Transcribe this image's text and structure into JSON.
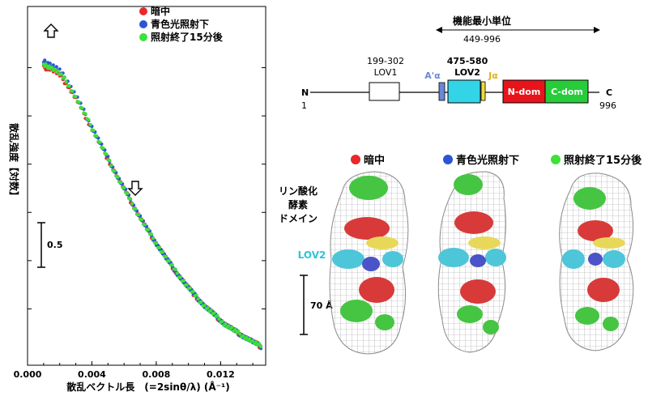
{
  "chart_data": {
    "type": "scatter",
    "xlabel": "散乱ベクトル長　(=2sinθ/λ) (Å⁻¹)",
    "ylabel": "散乱強度【対数】",
    "x_ticks": [
      "0.000",
      "0.004",
      "0.008",
      "0.012"
    ],
    "xlim": [
      0.0,
      0.0148
    ],
    "scale_bar_label": "0.5",
    "log_intensity_range": [
      0.0,
      3.55
    ],
    "legend_position": "top-right",
    "series": [
      {
        "name": "暗中",
        "color": "#e8282b",
        "x": [
          0.001,
          0.0014,
          0.002,
          0.0026,
          0.0032,
          0.0038,
          0.0044,
          0.005,
          0.0056,
          0.0062,
          0.0068,
          0.0074,
          0.008,
          0.0086,
          0.0092,
          0.0098,
          0.0104,
          0.011,
          0.0116,
          0.0122,
          0.0128,
          0.0134,
          0.014,
          0.0146
        ],
        "y": [
          3.0,
          2.99,
          2.92,
          2.79,
          2.62,
          2.43,
          2.24,
          2.05,
          1.86,
          1.68,
          1.5,
          1.33,
          1.18,
          1.03,
          0.89,
          0.76,
          0.64,
          0.53,
          0.44,
          0.35,
          0.28,
          0.22,
          0.16,
          0.1
        ]
      },
      {
        "name": "青色光照射下",
        "color": "#2c55d6",
        "x": [
          0.001,
          0.0014,
          0.002,
          0.0026,
          0.0032,
          0.0038,
          0.0044,
          0.005,
          0.0056,
          0.0062,
          0.0068,
          0.0074,
          0.008,
          0.0086,
          0.0092,
          0.0098,
          0.0104,
          0.011,
          0.0116,
          0.0122,
          0.0128,
          0.0134,
          0.014,
          0.0146
        ],
        "y": [
          3.06,
          3.04,
          2.97,
          2.83,
          2.65,
          2.45,
          2.26,
          2.06,
          1.87,
          1.69,
          1.51,
          1.34,
          1.18,
          1.03,
          0.89,
          0.76,
          0.64,
          0.53,
          0.44,
          0.35,
          0.28,
          0.22,
          0.16,
          0.1
        ]
      },
      {
        "name": "照射終了15分後",
        "color": "#3ee03a",
        "x": [
          0.001,
          0.0014,
          0.002,
          0.0026,
          0.0032,
          0.0038,
          0.0044,
          0.005,
          0.0056,
          0.0062,
          0.0068,
          0.0074,
          0.008,
          0.0086,
          0.0092,
          0.0098,
          0.0104,
          0.011,
          0.0116,
          0.0122,
          0.0128,
          0.0134,
          0.014,
          0.0146
        ],
        "y": [
          3.02,
          3.01,
          2.94,
          2.81,
          2.63,
          2.44,
          2.25,
          2.05,
          1.86,
          1.68,
          1.5,
          1.33,
          1.18,
          1.03,
          0.89,
          0.76,
          0.64,
          0.53,
          0.44,
          0.35,
          0.28,
          0.22,
          0.16,
          0.1
        ]
      }
    ]
  },
  "legend": {
    "dark": {
      "label": "暗中",
      "color": "#e8282b"
    },
    "blue": {
      "label": "青色光照射下",
      "color": "#2c55d6"
    },
    "after": {
      "label": "照射終了15分後",
      "color": "#3ee03a"
    }
  },
  "domain_map": {
    "unit_title": "機能最小単位",
    "unit_range": "449-996",
    "n_term": "N",
    "n_number": "1",
    "c_term": "C",
    "c_number": "996",
    "lov1_range": "199-302",
    "lov1_label": "LOV1",
    "aprime_label": "A'α",
    "lov2_range": "475-580",
    "lov2_label": "LOV2",
    "ja_label": "Jα",
    "ndom_label": "N-dom",
    "cdom_label": "C-dom",
    "colors": {
      "lov2": "#33d4e6",
      "aprime": "#6a88d8",
      "ja": "#f2dc3a",
      "ndom": "#e8141b",
      "cdom": "#28cc3a",
      "aprime_text": "#6a88d8",
      "ja_text": "#e0b21a"
    }
  },
  "structures": {
    "legend": {
      "dark": {
        "label": "暗中",
        "color": "#e8282b"
      },
      "blue": {
        "label": "青色光照射下",
        "color": "#2c55d6"
      },
      "after": {
        "label": "照射終了15分後",
        "color": "#3ee03a"
      }
    },
    "kinase_label_line1": "リン酸化",
    "kinase_label_line2": "酵素",
    "kinase_label_line3": "ドメイン",
    "lov2_label": "LOV2",
    "scale_label": "70 Å"
  }
}
